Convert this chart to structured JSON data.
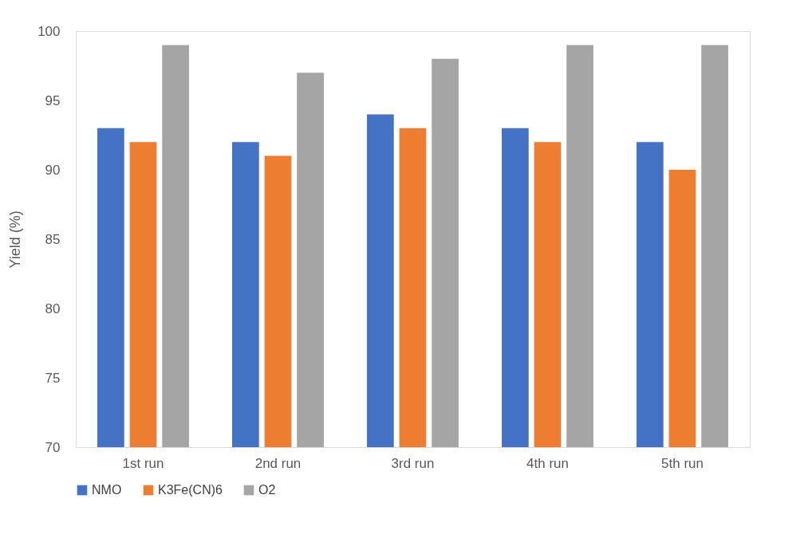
{
  "chart_data": {
    "type": "bar",
    "ylabel": "Yield (%)",
    "categories": [
      "1st run",
      "2nd run",
      "3rd run",
      "4th run",
      "5th run"
    ],
    "series": [
      {
        "name": "NMO",
        "color": "#4472c4",
        "values": [
          93,
          92,
          94,
          93,
          92
        ]
      },
      {
        "name": "K3Fe(CN)6",
        "color": "#ed7d31",
        "values": [
          92,
          91,
          93,
          92,
          90
        ]
      },
      {
        "name": "O2",
        "color": "#a5a5a5",
        "values": [
          99,
          97,
          98,
          99,
          99
        ]
      }
    ],
    "ylim": [
      70,
      100
    ],
    "yticks": [
      70,
      75,
      80,
      85,
      90,
      95,
      100
    ],
    "grid": false,
    "legend": "bottom"
  }
}
